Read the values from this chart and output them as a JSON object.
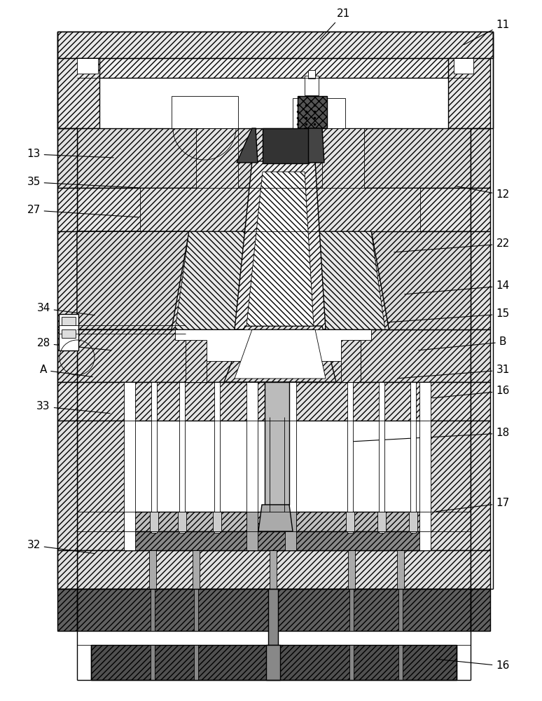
{
  "fig_width": 7.74,
  "fig_height": 10.0,
  "dpi": 100,
  "bg_color": "#ffffff",
  "lc": "#000000",
  "lw_main": 1.0,
  "lw_thin": 0.6,
  "fc_hatch": "#ffffff",
  "fc_dark": "#555555",
  "fc_mid": "#999999",
  "fc_light": "#dddddd",
  "hatch_45": "////",
  "hatch_back": "\\\\\\\\",
  "label_fs": 11,
  "annotations": [
    [
      "21",
      [
        455,
        58
      ],
      [
        490,
        20
      ]
    ],
    [
      "11",
      [
        660,
        65
      ],
      [
        718,
        35
      ]
    ],
    [
      "13",
      [
        165,
        225
      ],
      [
        48,
        220
      ]
    ],
    [
      "35",
      [
        200,
        268
      ],
      [
        48,
        260
      ]
    ],
    [
      "27",
      [
        200,
        310
      ],
      [
        48,
        300
      ]
    ],
    [
      "12",
      [
        648,
        265
      ],
      [
        718,
        278
      ]
    ],
    [
      "22",
      [
        560,
        360
      ],
      [
        718,
        348
      ]
    ],
    [
      "14",
      [
        575,
        420
      ],
      [
        718,
        408
      ]
    ],
    [
      "15",
      [
        550,
        460
      ],
      [
        718,
        448
      ]
    ],
    [
      "B",
      [
        595,
        500
      ],
      [
        718,
        488
      ]
    ],
    [
      "34",
      [
        138,
        450
      ],
      [
        62,
        440
      ]
    ],
    [
      "28",
      [
        162,
        500
      ],
      [
        62,
        490
      ]
    ],
    [
      "31",
      [
        565,
        540
      ],
      [
        718,
        528
      ]
    ],
    [
      "16",
      [
        615,
        568
      ],
      [
        718,
        558
      ]
    ],
    [
      "A",
      [
        135,
        538
      ],
      [
        62,
        528
      ]
    ],
    [
      "18",
      [
        500,
        630
      ],
      [
        718,
        618
      ]
    ],
    [
      "33",
      [
        160,
        590
      ],
      [
        62,
        580
      ]
    ],
    [
      "17",
      [
        620,
        730
      ],
      [
        718,
        718
      ]
    ],
    [
      "32",
      [
        138,
        790
      ],
      [
        48,
        778
      ]
    ],
    [
      "16",
      [
        620,
        940
      ],
      [
        718,
        950
      ]
    ]
  ]
}
